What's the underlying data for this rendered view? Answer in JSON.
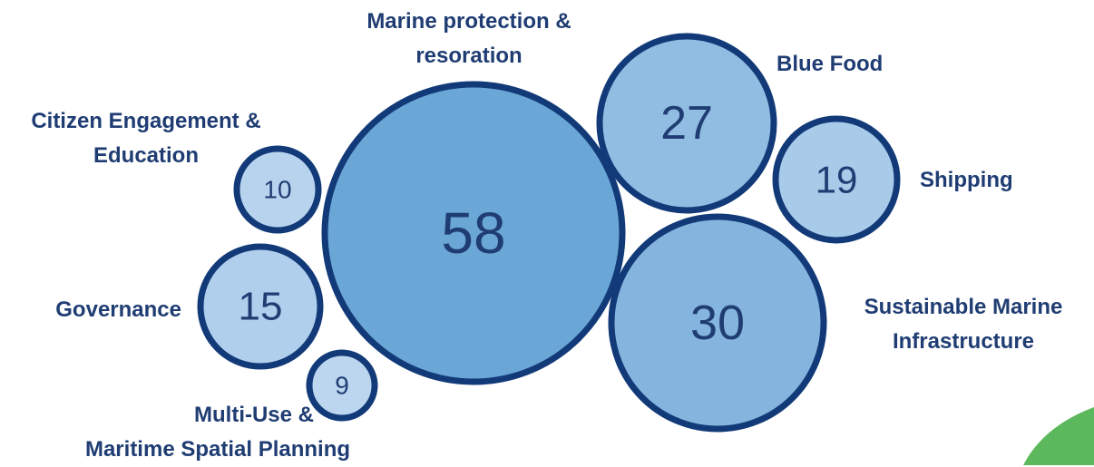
{
  "chart_data": {
    "type": "bubble",
    "series": [
      {
        "name": "Marine protection & resoration",
        "label_lines": [
          "Marine protection &",
          "resoration"
        ],
        "value": 58,
        "fill": "#6aa6d6"
      },
      {
        "name": "Blue Food",
        "label_lines": [
          "Blue Food"
        ],
        "value": 27,
        "fill": "#92bde2"
      },
      {
        "name": "Shipping",
        "label_lines": [
          "Shipping"
        ],
        "value": 19,
        "fill": "#a9cbea"
      },
      {
        "name": "Sustainable Marine Infrastructure",
        "label_lines": [
          "Sustainable Marine",
          "Infrastructure"
        ],
        "value": 30,
        "fill": "#85b5de"
      },
      {
        "name": "Citizen Engagement & Education",
        "label_lines": [
          "Citizen Engagement &",
          "Education"
        ],
        "value": 10,
        "fill": "#b8d3ee"
      },
      {
        "name": "Governance",
        "label_lines": [
          "Governance"
        ],
        "value": 15,
        "fill": "#b0cfec"
      },
      {
        "name": "Multi-Use & Maritime Spatial Planning",
        "label_lines": [
          "Multi-Use &",
          "Maritime Spatial Planning"
        ],
        "value": 9,
        "fill": "#bcd6ef"
      }
    ]
  },
  "colors": {
    "bubble_stroke": "#123a78",
    "label_text": "#1f3d73",
    "value_text": "#1f3d73",
    "corner_accent": "#5cb85c"
  }
}
